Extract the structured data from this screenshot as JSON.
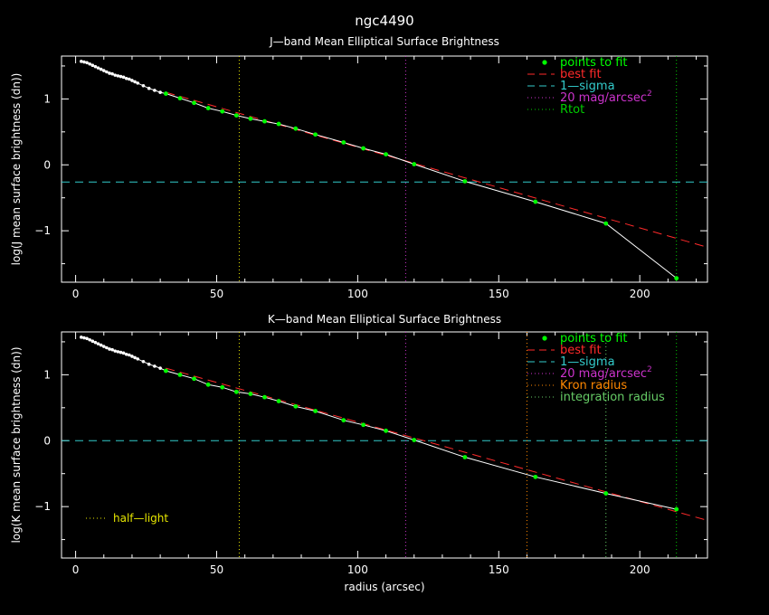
{
  "main_title": "ngc4490",
  "xlabel": "radius (arcsec)",
  "colors": {
    "points": "#00ff00",
    "best_fit": "#ff2a2a",
    "sigma": "#33cccc",
    "mag20": "#cc33cc",
    "rtot": "#00cc00",
    "kron": "#ff8800",
    "integration": "#66cc66",
    "half_light": "#e6e600",
    "profile": "#ffffff"
  },
  "chart_data": [
    {
      "type": "line",
      "title": "J—band Mean Elliptical Surface Brightness",
      "xlabel": "",
      "ylabel": "log(J mean surface brightness (dn))",
      "xlim": [
        -5,
        224
      ],
      "ylim": [
        -1.78,
        1.65
      ],
      "xticks": [
        0,
        50,
        100,
        150,
        200
      ],
      "yticks": [
        -1,
        0,
        1
      ],
      "legend": {
        "placement": "top-right",
        "entries": [
          "points to fit",
          "best fit",
          "1—sigma",
          "20 mag/arcsec",
          "Rtot"
        ],
        "mag_superscript": "2"
      },
      "profile": {
        "x": [
          2,
          3,
          4,
          5,
          6,
          7,
          8,
          9,
          10,
          11,
          12,
          13,
          14,
          15,
          16,
          17,
          18,
          19,
          20,
          21,
          22,
          24,
          26,
          28,
          30,
          32,
          37,
          42,
          47,
          52,
          57,
          62,
          67,
          72,
          78,
          85,
          95,
          102,
          110,
          120,
          138,
          163,
          188,
          213
        ],
        "y": [
          1.57,
          1.56,
          1.55,
          1.53,
          1.51,
          1.49,
          1.47,
          1.45,
          1.43,
          1.41,
          1.39,
          1.38,
          1.36,
          1.35,
          1.34,
          1.33,
          1.31,
          1.3,
          1.28,
          1.26,
          1.24,
          1.2,
          1.16,
          1.13,
          1.1,
          1.08,
          1.01,
          0.94,
          0.86,
          0.81,
          0.75,
          0.7,
          0.66,
          0.62,
          0.55,
          0.46,
          0.34,
          0.25,
          0.16,
          0.01,
          -0.25,
          -0.56,
          -0.89,
          -1.72
        ]
      },
      "fit_points": {
        "x": [
          32,
          37,
          42,
          47,
          52,
          57,
          62,
          67,
          72,
          78,
          85,
          95,
          102,
          110,
          120,
          138,
          163,
          188,
          213
        ],
        "y": [
          1.08,
          1.01,
          0.94,
          0.86,
          0.81,
          0.75,
          0.7,
          0.66,
          0.62,
          0.55,
          0.46,
          0.34,
          0.25,
          0.16,
          0.01,
          -0.25,
          -0.56,
          -0.89,
          -1.72
        ]
      },
      "best_fit_line": {
        "x": [
          32,
          224
        ],
        "y": [
          1.1,
          -1.25
        ]
      },
      "hlines": [
        {
          "y": -0.26,
          "style": "sigma"
        }
      ],
      "vlines": [
        {
          "x": 58,
          "style": "half_light"
        },
        {
          "x": 117,
          "style": "mag20"
        },
        {
          "x": 213,
          "style": "rtot"
        }
      ],
      "annotations": []
    },
    {
      "type": "line",
      "title": "K—band Mean Elliptical Surface Brightness",
      "xlabel": "radius (arcsec)",
      "ylabel": "log(K mean surface brightness (dn))",
      "xlim": [
        -5,
        224
      ],
      "ylim": [
        -1.78,
        1.65
      ],
      "xticks": [
        0,
        50,
        100,
        150,
        200
      ],
      "yticks": [
        -1,
        0,
        1
      ],
      "legend": {
        "placement": "top-right",
        "entries": [
          "points to fit",
          "best fit",
          "1—sigma",
          "20 mag/arcsec",
          "Kron radius",
          "integration radius"
        ],
        "mag_superscript": "2"
      },
      "profile": {
        "x": [
          2,
          3,
          4,
          5,
          6,
          7,
          8,
          9,
          10,
          11,
          12,
          13,
          14,
          15,
          16,
          17,
          18,
          19,
          20,
          21,
          22,
          24,
          26,
          28,
          30,
          32,
          37,
          42,
          47,
          52,
          57,
          62,
          67,
          72,
          78,
          85,
          95,
          102,
          110,
          120,
          138,
          163,
          188,
          213
        ],
        "y": [
          1.57,
          1.56,
          1.55,
          1.53,
          1.51,
          1.49,
          1.47,
          1.45,
          1.43,
          1.41,
          1.39,
          1.38,
          1.36,
          1.35,
          1.34,
          1.33,
          1.31,
          1.3,
          1.28,
          1.26,
          1.24,
          1.2,
          1.16,
          1.13,
          1.1,
          1.06,
          1.0,
          0.94,
          0.85,
          0.81,
          0.74,
          0.71,
          0.66,
          0.6,
          0.52,
          0.45,
          0.31,
          0.24,
          0.15,
          0.01,
          -0.25,
          -0.55,
          -0.8,
          -1.04
        ]
      },
      "fit_points": {
        "x": [
          32,
          37,
          42,
          47,
          52,
          57,
          62,
          67,
          72,
          78,
          85,
          95,
          102,
          110,
          120,
          138,
          163,
          188,
          213
        ],
        "y": [
          1.06,
          1.0,
          0.94,
          0.85,
          0.81,
          0.74,
          0.71,
          0.66,
          0.6,
          0.52,
          0.45,
          0.31,
          0.24,
          0.15,
          0.01,
          -0.25,
          -0.55,
          -0.8,
          -1.04
        ]
      },
      "best_fit_line": {
        "x": [
          32,
          224
        ],
        "y": [
          1.1,
          -1.21
        ]
      },
      "hlines": [
        {
          "y": 0.0,
          "style": "sigma"
        }
      ],
      "vlines": [
        {
          "x": 58,
          "style": "half_light"
        },
        {
          "x": 117,
          "style": "mag20"
        },
        {
          "x": 160,
          "style": "kron"
        },
        {
          "x": 188,
          "style": "integration"
        },
        {
          "x": 213,
          "style": "rtot"
        }
      ],
      "annotations": [
        {
          "text": "half—light",
          "style": "half_light"
        }
      ]
    }
  ]
}
